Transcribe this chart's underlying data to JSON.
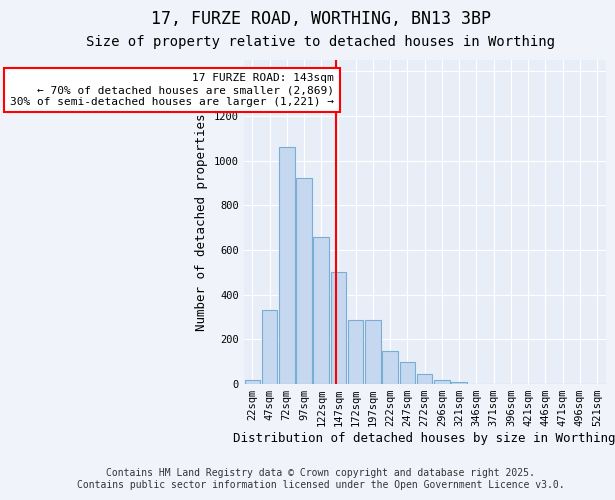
{
  "title": "17, FURZE ROAD, WORTHING, BN13 3BP",
  "subtitle": "Size of property relative to detached houses in Worthing",
  "xlabel": "Distribution of detached houses by size in Worthing",
  "ylabel": "Number of detached properties",
  "categories": [
    "22sqm",
    "47sqm",
    "72sqm",
    "97sqm",
    "122sqm",
    "147sqm",
    "172sqm",
    "197sqm",
    "222sqm",
    "247sqm",
    "272sqm",
    "296sqm",
    "321sqm",
    "346sqm",
    "371sqm",
    "396sqm",
    "421sqm",
    "446sqm",
    "471sqm",
    "496sqm",
    "521sqm"
  ],
  "values": [
    20,
    330,
    1060,
    920,
    660,
    500,
    285,
    285,
    150,
    100,
    45,
    20,
    10,
    0,
    0,
    0,
    0,
    0,
    0,
    0,
    0
  ],
  "bar_color": "#c5d8f0",
  "bar_edge_color": "#7aadd4",
  "bar_width": 0.9,
  "annotation_line1": "17 FURZE ROAD: 143sqm",
  "annotation_line2": "← 70% of detached houses are smaller (2,869)",
  "annotation_line3": "30% of semi-detached houses are larger (1,221) →",
  "ylim": [
    0,
    1450
  ],
  "yticks": [
    0,
    200,
    400,
    600,
    800,
    1000,
    1200,
    1400
  ],
  "bg_color": "#f0f4fa",
  "plot_bg_color": "#e8eef8",
  "grid_color": "#ffffff",
  "footer_line1": "Contains HM Land Registry data © Crown copyright and database right 2025.",
  "footer_line2": "Contains public sector information licensed under the Open Government Licence v3.0.",
  "title_fontsize": 12,
  "subtitle_fontsize": 10,
  "axis_label_fontsize": 9,
  "tick_fontsize": 7.5,
  "annotation_fontsize": 8,
  "footer_fontsize": 7
}
